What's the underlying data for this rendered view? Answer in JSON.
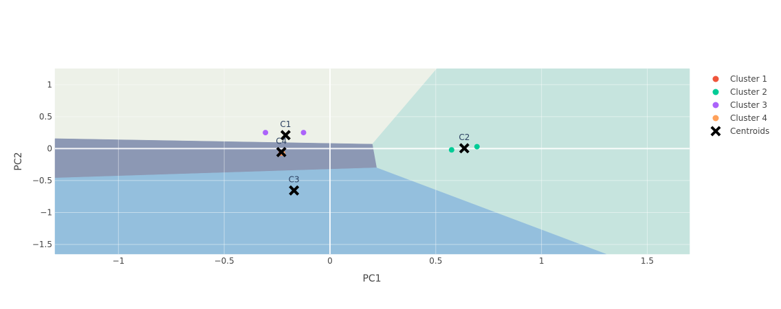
{
  "chart_data": {
    "type": "scatter",
    "xlabel": "PC1",
    "ylabel": "PC2",
    "xlim": [
      -1.3,
      1.7
    ],
    "ylim": [
      -1.65,
      1.25
    ],
    "x_ticks": [
      -1,
      -0.5,
      0,
      0.5,
      1,
      1.5
    ],
    "x_tick_labels": [
      "−1",
      "−0.5",
      "0",
      "0.5",
      "1",
      "1.5"
    ],
    "y_ticks": [
      -1.5,
      -1,
      -0.5,
      0,
      0.5,
      1
    ],
    "y_tick_labels": [
      "−1.5",
      "−1",
      "−0.5",
      "0",
      "0.5",
      "1"
    ],
    "grid": true,
    "legend_position": "right",
    "decision_regions": [
      {
        "cluster": "Cluster 1",
        "color": "#edf1e8",
        "polygon": [
          [
            -1.3,
            1.25
          ],
          [
            0.505,
            1.25
          ],
          [
            0.2,
            0.07
          ],
          [
            -1.3,
            0.155
          ]
        ]
      },
      {
        "cluster": "Cluster 2",
        "color": "#c6e4de",
        "polygon": [
          [
            0.505,
            1.25
          ],
          [
            1.7,
            1.25
          ],
          [
            1.7,
            -1.65
          ],
          [
            1.305,
            -1.65
          ],
          [
            0.22,
            -0.3
          ],
          [
            0.2,
            0.07
          ]
        ]
      },
      {
        "cluster": "Cluster 4",
        "color": "#8c98b4",
        "polygon": [
          [
            -1.3,
            0.155
          ],
          [
            0.2,
            0.07
          ],
          [
            0.22,
            -0.3
          ],
          [
            -1.3,
            -0.46
          ]
        ]
      },
      {
        "cluster": "Cluster 3",
        "color": "#94bfdd",
        "polygon": [
          [
            -1.3,
            -0.46
          ],
          [
            0.22,
            -0.3
          ],
          [
            1.305,
            -1.65
          ],
          [
            -1.3,
            -1.65
          ]
        ]
      }
    ],
    "series": [
      {
        "name": "Cluster 1",
        "color": "#ef553b",
        "x": [
          -0.23
        ],
        "y": [
          -0.07
        ]
      },
      {
        "name": "Cluster 2",
        "color": "#00cc96",
        "x": [
          0.575,
          0.695
        ],
        "y": [
          -0.02,
          0.03
        ]
      },
      {
        "name": "Cluster 3",
        "color": "#ab63fa",
        "x": [
          -0.305,
          -0.125
        ],
        "y": [
          0.25,
          0.25
        ]
      },
      {
        "name": "Cluster 4",
        "color": "#ffa15a",
        "x": [
          -0.225
        ],
        "y": [
          -0.07
        ]
      },
      {
        "name": "Centroids",
        "color": "#000000",
        "symbol": "x",
        "x": [
          -0.21,
          0.635,
          -0.17,
          -0.23
        ],
        "y": [
          0.21,
          0.005,
          -0.655,
          -0.055
        ],
        "labels": [
          "C1",
          "C2",
          "C3",
          "C4"
        ]
      }
    ]
  }
}
